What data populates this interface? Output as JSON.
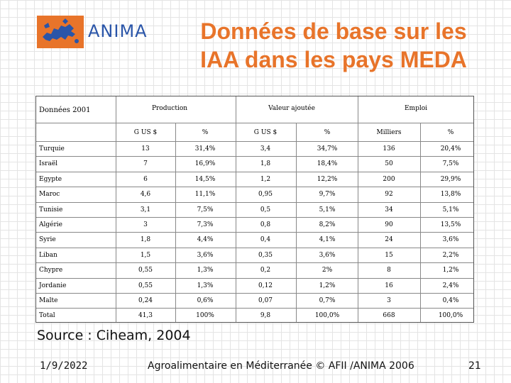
{
  "logo": {
    "text": "ANIMA",
    "icon": "europe-map-icon"
  },
  "title": {
    "line1": "Données de base sur les",
    "line2": "IAA dans les pays MEDA"
  },
  "table": {
    "corner_label": "Données 2001",
    "groups": [
      "Production",
      "Valeur ajoutée",
      "Emploi"
    ],
    "subheaders": [
      "G US $",
      "%",
      "G US $",
      "%",
      "Milliers",
      "%"
    ],
    "rows": [
      {
        "country": "Turquie",
        "values": [
          "13",
          "31,4%",
          "3,4",
          "34,7%",
          "136",
          "20,4%"
        ]
      },
      {
        "country": "Israël",
        "values": [
          "7",
          "16,9%",
          "1,8",
          "18,4%",
          "50",
          "7,5%"
        ]
      },
      {
        "country": "Egypte",
        "values": [
          "6",
          "14,5%",
          "1,2",
          "12,2%",
          "200",
          "29,9%"
        ]
      },
      {
        "country": "Maroc",
        "values": [
          "4,6",
          "11,1%",
          "0,95",
          "9,7%",
          "92",
          "13,8%"
        ]
      },
      {
        "country": "Tunisie",
        "values": [
          "3,1",
          "7,5%",
          "0,5",
          "5,1%",
          "34",
          "5,1%"
        ]
      },
      {
        "country": "Algérie",
        "values": [
          "3",
          "7,3%",
          "0,8",
          "8,2%",
          "90",
          "13,5%"
        ]
      },
      {
        "country": "Syrie",
        "values": [
          "1,8",
          "4,4%",
          "0,4",
          "4,1%",
          "24",
          "3,6%"
        ]
      },
      {
        "country": "Liban",
        "values": [
          "1,5",
          "3,6%",
          "0,35",
          "3,6%",
          "15",
          "2,2%"
        ]
      },
      {
        "country": "Chypre",
        "values": [
          "0,55",
          "1,3%",
          "0,2",
          "2%",
          "8",
          "1,2%"
        ]
      },
      {
        "country": "Jordanie",
        "values": [
          "0,55",
          "1,3%",
          "0,12",
          "1,2%",
          "16",
          "2,4%"
        ]
      },
      {
        "country": "Malte",
        "values": [
          "0,24",
          "0,6%",
          "0,07",
          "0,7%",
          "3",
          "0,4%"
        ]
      },
      {
        "country": "Total",
        "values": [
          "41,3",
          "100%",
          "9,8",
          "100,0%",
          "668",
          "100,0%"
        ]
      }
    ]
  },
  "source": "Source : Ciheam, 2004",
  "footer": {
    "date": "1/9/2022",
    "center": "Agroalimentaire en Méditerranée © AFII /ANIMA 2006",
    "page": "21"
  }
}
